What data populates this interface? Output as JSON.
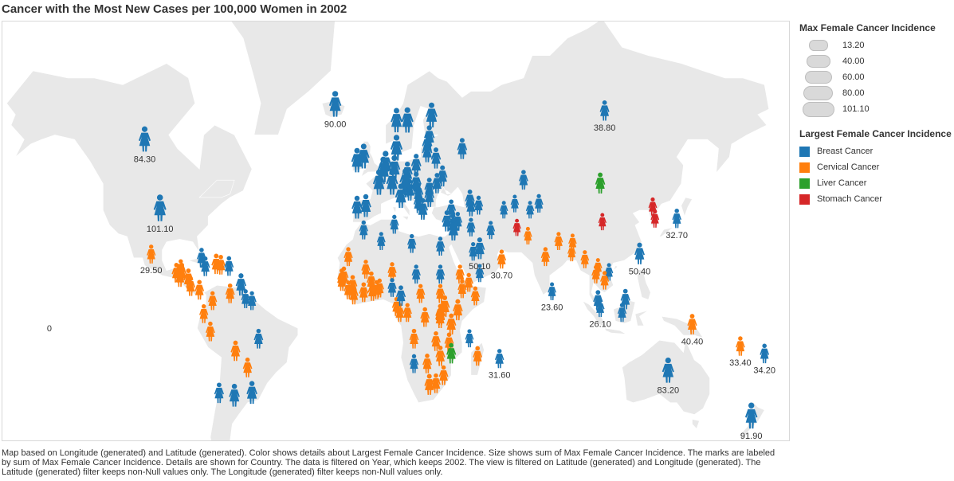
{
  "title": "Cancer with the Most New Cases per 100,000 Women in 2002",
  "size_legend": {
    "title": "Max Female Cancer Incidence",
    "items": [
      {
        "label": "13.20",
        "value": 13.2
      },
      {
        "label": "40.00",
        "value": 40.0
      },
      {
        "label": "60.00",
        "value": 60.0
      },
      {
        "label": "80.00",
        "value": 80.0
      },
      {
        "label": "101.10",
        "value": 101.1
      }
    ]
  },
  "color_legend": {
    "title": "Largest Female Cancer Incidence",
    "items": [
      {
        "label": "Breast Cancer",
        "color": "#1f77b4"
      },
      {
        "label": "Cervical Cancer",
        "color": "#ff7f0e"
      },
      {
        "label": "Liver Cancer",
        "color": "#2ca02c"
      },
      {
        "label": "Stomach Cancer",
        "color": "#d62728"
      }
    ]
  },
  "map_colors": {
    "land": "#e8e8e8",
    "sea": "#ffffff"
  },
  "marker_icon": "woman-figure-icon",
  "labels": [
    "84.30",
    "90.00",
    "38.80",
    "101.10",
    "29.50",
    "50.10",
    "30.70",
    "23.60",
    "32.70",
    "50.40",
    "26.10",
    "40.40",
    "33.40",
    "34.20",
    "31.60",
    "83.20",
    "91.90",
    "0"
  ],
  "chart_data": {
    "type": "symbol-map",
    "size_measure": "Max Female Cancer Incidence",
    "color_measure": "Largest Female Cancer Incidence",
    "points": [
      {
        "lon": -105,
        "lat": 58,
        "cat": "Breast Cancer",
        "value": 84.3,
        "label": "84.30"
      },
      {
        "lon": -18,
        "lat": 65,
        "cat": "Breast Cancer",
        "value": 90.0,
        "label": "90.00"
      },
      {
        "lon": -98,
        "lat": 39,
        "cat": "Breast Cancer",
        "value": 101.1,
        "label": "101.10"
      },
      {
        "lon": -102,
        "lat": 23,
        "cat": "Cervical Cancer",
        "value": 29.5,
        "label": "29.50"
      },
      {
        "lon": 105,
        "lat": 64,
        "cat": "Breast Cancer",
        "value": 38.8,
        "label": "38.80"
      },
      {
        "lon": 48,
        "lat": 25,
        "cat": "Breast Cancer",
        "value": 50.1,
        "label": "50.10"
      },
      {
        "lon": 58,
        "lat": 21,
        "cat": "Cervical Cancer",
        "value": 30.7,
        "label": "30.70"
      },
      {
        "lon": 81,
        "lat": 8,
        "cat": "Breast Cancer",
        "value": 23.6,
        "label": "23.60"
      },
      {
        "lon": 138,
        "lat": 36,
        "cat": "Breast Cancer",
        "value": 32.7,
        "label": "32.70"
      },
      {
        "lon": 121,
        "lat": 23,
        "cat": "Breast Cancer",
        "value": 50.4,
        "label": "50.40"
      },
      {
        "lon": 103,
        "lat": 1,
        "cat": "Breast Cancer",
        "value": 26.1,
        "label": "26.10"
      },
      {
        "lon": 145,
        "lat": -6,
        "cat": "Cervical Cancer",
        "value": 40.4,
        "label": "40.40"
      },
      {
        "lon": 167,
        "lat": -15,
        "cat": "Cervical Cancer",
        "value": 33.4,
        "label": "33.40"
      },
      {
        "lon": 178,
        "lat": -18,
        "cat": "Breast Cancer",
        "value": 34.2,
        "label": "34.20"
      },
      {
        "lon": 57,
        "lat": -20,
        "cat": "Breast Cancer",
        "value": 31.6,
        "label": "31.60"
      },
      {
        "lon": 134,
        "lat": -25,
        "cat": "Breast Cancer",
        "value": 83.2,
        "label": "83.20"
      },
      {
        "lon": 172,
        "lat": -41,
        "cat": "Breast Cancer",
        "value": 91.9,
        "label": "91.90"
      },
      {
        "lon": -5,
        "lat": 54,
        "cat": "Breast Cancer",
        "value": 80
      },
      {
        "lon": -8,
        "lat": 53,
        "cat": "Breast Cancer",
        "value": 75
      },
      {
        "lon": 2,
        "lat": 47,
        "cat": "Breast Cancer",
        "value": 85
      },
      {
        "lon": 9,
        "lat": 51,
        "cat": "Breast Cancer",
        "value": 80
      },
      {
        "lon": 5,
        "lat": 52,
        "cat": "Breast Cancer",
        "value": 90
      },
      {
        "lon": 4,
        "lat": 50.5,
        "cat": "Breast Cancer",
        "value": 90
      },
      {
        "lon": 8,
        "lat": 47,
        "cat": "Breast Cancer",
        "value": 82
      },
      {
        "lon": 14,
        "lat": 47.5,
        "cat": "Breast Cancer",
        "value": 72
      },
      {
        "lon": 10,
        "lat": 56,
        "cat": "Breast Cancer",
        "value": 88
      },
      {
        "lon": 15,
        "lat": 62,
        "cat": "Breast Cancer",
        "value": 85
      },
      {
        "lon": 10,
        "lat": 62,
        "cat": "Breast Cancer",
        "value": 75
      },
      {
        "lon": 26,
        "lat": 63,
        "cat": "Breast Cancer",
        "value": 80
      },
      {
        "lon": 12,
        "lat": 43,
        "cat": "Breast Cancer",
        "value": 75
      },
      {
        "lon": -4,
        "lat": 40,
        "cat": "Breast Cancer",
        "value": 60
      },
      {
        "lon": -8,
        "lat": 39.5,
        "cat": "Breast Cancer",
        "value": 60
      },
      {
        "lon": 19,
        "lat": 52,
        "cat": "Breast Cancer",
        "value": 50
      },
      {
        "lon": 15,
        "lat": 49.8,
        "cat": "Breast Cancer",
        "value": 55
      },
      {
        "lon": 19,
        "lat": 47,
        "cat": "Breast Cancer",
        "value": 55
      },
      {
        "lon": 25,
        "lat": 45.5,
        "cat": "Breast Cancer",
        "value": 45
      },
      {
        "lon": 22,
        "lat": 39,
        "cat": "Breast Cancer",
        "value": 50
      },
      {
        "lon": 25,
        "lat": 58.7,
        "cat": "Breast Cancer",
        "value": 55
      },
      {
        "lon": 24,
        "lat": 56.9,
        "cat": "Breast Cancer",
        "value": 50
      },
      {
        "lon": 24,
        "lat": 55.3,
        "cat": "Breast Cancer",
        "value": 50
      },
      {
        "lon": 28,
        "lat": 53.7,
        "cat": "Breast Cancer",
        "value": 45
      },
      {
        "lon": 31,
        "lat": 49,
        "cat": "Breast Cancer",
        "value": 45
      },
      {
        "lon": 40,
        "lat": 56,
        "cat": "Breast Cancer",
        "value": 45
      },
      {
        "lon": 25,
        "lat": 43,
        "cat": "Breast Cancer",
        "value": 45
      },
      {
        "lon": 20,
        "lat": 44,
        "cat": "Breast Cancer",
        "value": 45
      },
      {
        "lon": 16,
        "lat": 45,
        "cat": "Breast Cancer",
        "value": 50
      },
      {
        "lon": 14.5,
        "lat": 46.1,
        "cat": "Breast Cancer",
        "value": 55
      },
      {
        "lon": 20,
        "lat": 41,
        "cat": "Breast Cancer",
        "value": 40
      },
      {
        "lon": 28.5,
        "lat": 47,
        "cat": "Breast Cancer",
        "value": 40
      },
      {
        "lon": 35,
        "lat": 39,
        "cat": "Breast Cancer",
        "value": 35
      },
      {
        "lon": 33,
        "lat": 35,
        "cat": "Breast Cancer",
        "value": 45
      },
      {
        "lon": 44,
        "lat": 40,
        "cat": "Breast Cancer",
        "value": 40
      },
      {
        "lon": 43.5,
        "lat": 42,
        "cat": "Breast Cancer",
        "value": 40
      },
      {
        "lon": 47.5,
        "lat": 40.4,
        "cat": "Breast Cancer",
        "value": 30
      },
      {
        "lon": 36,
        "lat": 32,
        "cat": "Breast Cancer",
        "value": 60
      },
      {
        "lon": 35.8,
        "lat": 33.8,
        "cat": "Breast Cancer",
        "value": 45
      },
      {
        "lon": 38,
        "lat": 35,
        "cat": "Breast Cancer",
        "value": 30
      },
      {
        "lon": 44,
        "lat": 33,
        "cat": "Breast Cancer",
        "value": 28
      },
      {
        "lon": 53,
        "lat": 32,
        "cat": "Breast Cancer",
        "value": 25
      },
      {
        "lon": 45,
        "lat": 24,
        "cat": "Breast Cancer",
        "value": 28
      },
      {
        "lon": 48,
        "lat": 15.5,
        "cat": "Breast Cancer",
        "value": 25
      },
      {
        "lon": 65,
        "lat": 33,
        "cat": "Stomach Cancer",
        "value": 20
      },
      {
        "lon": 68,
        "lat": 48,
        "cat": "Breast Cancer",
        "value": 35
      },
      {
        "lon": 64,
        "lat": 41,
        "cat": "Breast Cancer",
        "value": 22
      },
      {
        "lon": 59,
        "lat": 39,
        "cat": "Breast Cancer",
        "value": 22
      },
      {
        "lon": 71,
        "lat": 39,
        "cat": "Breast Cancer",
        "value": 22
      },
      {
        "lon": 75,
        "lat": 41,
        "cat": "Breast Cancer",
        "value": 28
      },
      {
        "lon": 70,
        "lat": 30,
        "cat": "Cervical Cancer",
        "value": 22
      },
      {
        "lon": 78,
        "lat": 22,
        "cat": "Cervical Cancer",
        "value": 30
      },
      {
        "lon": 84,
        "lat": 28,
        "cat": "Cervical Cancer",
        "value": 25
      },
      {
        "lon": 90,
        "lat": 23.7,
        "cat": "Cervical Cancer",
        "value": 22
      },
      {
        "lon": 90.4,
        "lat": 27.5,
        "cat": "Cervical Cancer",
        "value": 22
      },
      {
        "lon": 96,
        "lat": 21,
        "cat": "Cervical Cancer",
        "value": 25
      },
      {
        "lon": 101,
        "lat": 15,
        "cat": "Cervical Cancer",
        "value": 25
      },
      {
        "lon": 105,
        "lat": 12.5,
        "cat": "Cervical Cancer",
        "value": 28
      },
      {
        "lon": 102,
        "lat": 18,
        "cat": "Cervical Cancer",
        "value": 22
      },
      {
        "lon": 107,
        "lat": 16,
        "cat": "Breast Cancer",
        "value": 22
      },
      {
        "lon": 103,
        "lat": 47,
        "cat": "Liver Cancer",
        "value": 45
      },
      {
        "lon": 104,
        "lat": 35,
        "cat": "Stomach Cancer",
        "value": 20
      },
      {
        "lon": 127,
        "lat": 40,
        "cat": "Stomach Cancer",
        "value": 25
      },
      {
        "lon": 128,
        "lat": 36,
        "cat": "Stomach Cancer",
        "value": 25
      },
      {
        "lon": 102,
        "lat": 4,
        "cat": "Breast Cancer",
        "value": 40
      },
      {
        "lon": 114.5,
        "lat": 4.5,
        "cat": "Breast Cancer",
        "value": 40
      },
      {
        "lon": 113,
        "lat": -1,
        "cat": "Breast Cancer",
        "value": 30
      },
      {
        "lon": -5,
        "lat": 32,
        "cat": "Breast Cancer",
        "value": 30
      },
      {
        "lon": 3,
        "lat": 28,
        "cat": "Breast Cancer",
        "value": 25
      },
      {
        "lon": 9,
        "lat": 34,
        "cat": "Breast Cancer",
        "value": 30
      },
      {
        "lon": 17,
        "lat": 27,
        "cat": "Breast Cancer",
        "value": 30
      },
      {
        "lon": 30,
        "lat": 26,
        "cat": "Breast Cancer",
        "value": 30
      },
      {
        "lon": 30,
        "lat": 15,
        "cat": "Breast Cancer",
        "value": 30
      },
      {
        "lon": -12,
        "lat": 22,
        "cat": "Cervical Cancer",
        "value": 30
      },
      {
        "lon": -14,
        "lat": 14,
        "cat": "Cervical Cancer",
        "value": 35
      },
      {
        "lon": -15,
        "lat": 13.4,
        "cat": "Cervical Cancer",
        "value": 30
      },
      {
        "lon": -15,
        "lat": 12,
        "cat": "Cervical Cancer",
        "value": 30
      },
      {
        "lon": -10,
        "lat": 10.5,
        "cat": "Cervical Cancer",
        "value": 35
      },
      {
        "lon": -12,
        "lat": 8.5,
        "cat": "Cervical Cancer",
        "value": 30
      },
      {
        "lon": -9.5,
        "lat": 6.5,
        "cat": "Cervical Cancer",
        "value": 35
      },
      {
        "lon": -4,
        "lat": 17,
        "cat": "Cervical Cancer",
        "value": 30
      },
      {
        "lon": -1.5,
        "lat": 12,
        "cat": "Cervical Cancer",
        "value": 35
      },
      {
        "lon": -5,
        "lat": 7.5,
        "cat": "Cervical Cancer",
        "value": 35
      },
      {
        "lon": -1,
        "lat": 8,
        "cat": "Cervical Cancer",
        "value": 35
      },
      {
        "lon": 1,
        "lat": 8.6,
        "cat": "Cervical Cancer",
        "value": 30
      },
      {
        "lon": 2.3,
        "lat": 9.3,
        "cat": "Cervical Cancer",
        "value": 30
      },
      {
        "lon": 8,
        "lat": 16,
        "cat": "Cervical Cancer",
        "value": 30
      },
      {
        "lon": 8,
        "lat": 9.5,
        "cat": "Breast Cancer",
        "value": 30
      },
      {
        "lon": 12,
        "lat": 6,
        "cat": "Breast Cancer",
        "value": 40
      },
      {
        "lon": 19,
        "lat": 15,
        "cat": "Breast Cancer",
        "value": 30
      },
      {
        "lon": 21,
        "lat": 7,
        "cat": "Cervical Cancer",
        "value": 30
      },
      {
        "lon": 10,
        "lat": 1.5,
        "cat": "Cervical Cancer",
        "value": 30
      },
      {
        "lon": 11.5,
        "lat": -1,
        "cat": "Cervical Cancer",
        "value": 30
      },
      {
        "lon": 15,
        "lat": -1,
        "cat": "Cervical Cancer",
        "value": 30
      },
      {
        "lon": 23,
        "lat": -3,
        "cat": "Cervical Cancer",
        "value": 35
      },
      {
        "lon": 30,
        "lat": 7,
        "cat": "Cervical Cancer",
        "value": 30
      },
      {
        "lon": 39,
        "lat": 15,
        "cat": "Cervical Cancer",
        "value": 30
      },
      {
        "lon": 40,
        "lat": 9,
        "cat": "Cervical Cancer",
        "value": 30
      },
      {
        "lon": 43,
        "lat": 11.6,
        "cat": "Cervical Cancer",
        "value": 30
      },
      {
        "lon": 46,
        "lat": 6,
        "cat": "Cervical Cancer",
        "value": 30
      },
      {
        "lon": 32,
        "lat": 1.4,
        "cat": "Cervical Cancer",
        "value": 50
      },
      {
        "lon": 38,
        "lat": 0,
        "cat": "Cervical Cancer",
        "value": 45
      },
      {
        "lon": 30,
        "lat": -2,
        "cat": "Cervical Cancer",
        "value": 45
      },
      {
        "lon": 29.9,
        "lat": -3.4,
        "cat": "Cervical Cancer",
        "value": 40
      },
      {
        "lon": 35,
        "lat": -6,
        "cat": "Cervical Cancer",
        "value": 45
      },
      {
        "lon": 18,
        "lat": -12,
        "cat": "Cervical Cancer",
        "value": 35
      },
      {
        "lon": 28,
        "lat": -13,
        "cat": "Cervical Cancer",
        "value": 35
      },
      {
        "lon": 34,
        "lat": -13.5,
        "cat": "Cervical Cancer",
        "value": 35
      },
      {
        "lon": 35,
        "lat": -18,
        "cat": "Liver Cancer",
        "value": 40
      },
      {
        "lon": 30,
        "lat": -19,
        "cat": "Cervical Cancer",
        "value": 40
      },
      {
        "lon": 24,
        "lat": -22,
        "cat": "Cervical Cancer",
        "value": 35
      },
      {
        "lon": 18,
        "lat": -22,
        "cat": "Breast Cancer",
        "value": 30
      },
      {
        "lon": 25,
        "lat": -30,
        "cat": "Cervical Cancer",
        "value": 45
      },
      {
        "lon": 28,
        "lat": -29.5,
        "cat": "Cervical Cancer",
        "value": 35
      },
      {
        "lon": 31.5,
        "lat": -26.5,
        "cat": "Cervical Cancer",
        "value": 35
      },
      {
        "lon": 47,
        "lat": -19,
        "cat": "Cervical Cancer",
        "value": 35
      },
      {
        "lon": 43.3,
        "lat": -11.7,
        "cat": "Breast Cancer",
        "value": 25
      },
      {
        "lon": -88,
        "lat": 15.5,
        "cat": "Cervical Cancer",
        "value": 35
      },
      {
        "lon": -90.5,
        "lat": 15.5,
        "cat": "Cervical Cancer",
        "value": 35
      },
      {
        "lon": -88.9,
        "lat": 13.8,
        "cat": "Cervical Cancer",
        "value": 40
      },
      {
        "lon": -85,
        "lat": 13,
        "cat": "Cervical Cancer",
        "value": 40
      },
      {
        "lon": -84,
        "lat": 10,
        "cat": "Cervical Cancer",
        "value": 35
      },
      {
        "lon": -80,
        "lat": 8.5,
        "cat": "Cervical Cancer",
        "value": 35
      },
      {
        "lon": -88.5,
        "lat": 17.2,
        "cat": "Cervical Cancer",
        "value": 30
      },
      {
        "lon": -79,
        "lat": 21.5,
        "cat": "Breast Cancer",
        "value": 35
      },
      {
        "lon": -72.3,
        "lat": 19,
        "cat": "Cervical Cancer",
        "value": 40
      },
      {
        "lon": -70.2,
        "lat": 18.7,
        "cat": "Cervical Cancer",
        "value": 35
      },
      {
        "lon": -77.3,
        "lat": 18.1,
        "cat": "Breast Cancer",
        "value": 35
      },
      {
        "lon": -66.5,
        "lat": 18.2,
        "cat": "Breast Cancer",
        "value": 35
      },
      {
        "lon": -61,
        "lat": 10.5,
        "cat": "Breast Cancer",
        "value": 55
      },
      {
        "lon": -66,
        "lat": 7,
        "cat": "Cervical Cancer",
        "value": 35
      },
      {
        "lon": -74,
        "lat": 4,
        "cat": "Cervical Cancer",
        "value": 30
      },
      {
        "lon": -58.9,
        "lat": 4.8,
        "cat": "Breast Cancer",
        "value": 30
      },
      {
        "lon": -56,
        "lat": 4,
        "cat": "Breast Cancer",
        "value": 30
      },
      {
        "lon": -78,
        "lat": -1.5,
        "cat": "Cervical Cancer",
        "value": 30
      },
      {
        "lon": -75,
        "lat": -9,
        "cat": "Cervical Cancer",
        "value": 35
      },
      {
        "lon": -63.5,
        "lat": -17,
        "cat": "Cervical Cancer",
        "value": 40
      },
      {
        "lon": -53,
        "lat": -12,
        "cat": "Breast Cancer",
        "value": 35
      },
      {
        "lon": -71,
        "lat": -33,
        "cat": "Breast Cancer",
        "value": 40
      },
      {
        "lon": -58,
        "lat": -23.5,
        "cat": "Cervical Cancer",
        "value": 35
      },
      {
        "lon": -64,
        "lat": -34,
        "cat": "Breast Cancer",
        "value": 60
      },
      {
        "lon": -56,
        "lat": -33,
        "cat": "Breast Cancer",
        "value": 60
      }
    ]
  }
}
